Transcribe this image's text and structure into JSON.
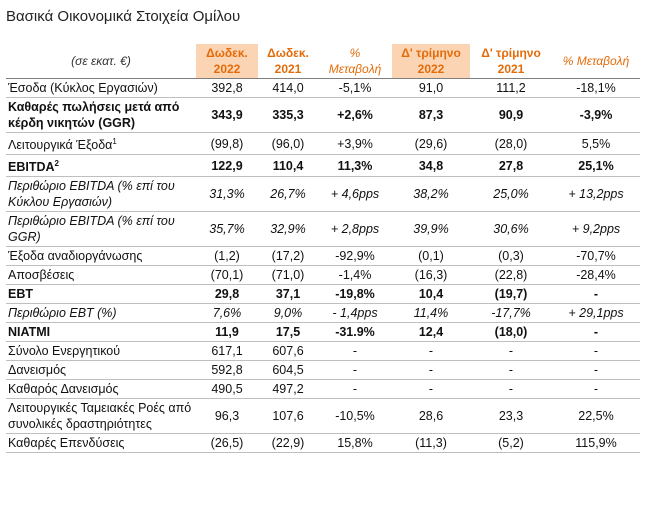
{
  "header": {
    "title": "Βασικά Οικονομικά Στοιχεία Ομίλου"
  },
  "table": {
    "columns": [
      {
        "text": "(σε εκατ. €)",
        "style": "unit"
      },
      {
        "text": "Δωδεκ. 2022",
        "style": "highlight"
      },
      {
        "text": "Δωδεκ. 2021",
        "style": "plain"
      },
      {
        "text": "% Μεταβολή",
        "style": "change"
      },
      {
        "text": "Δ' τρίμηνο 2022",
        "style": "highlight"
      },
      {
        "text": "Δ' τρίμηνο 2021",
        "style": "plain"
      },
      {
        "text": "% Μεταβολή",
        "style": "change"
      }
    ],
    "rows": [
      {
        "label": "Έσοδα (Κύκλος Εργασιών)",
        "style": "normal",
        "cells": [
          "392,8",
          "414,0",
          "-5,1%",
          "91,0",
          "111,2",
          "-18,1%"
        ]
      },
      {
        "label": "Καθαρές πωλήσεις μετά από κέρδη νικητών (GGR)",
        "style": "bold",
        "cells": [
          "343,9",
          "335,3",
          "+2,6%",
          "87,3",
          "90,9",
          "-3,9%"
        ]
      },
      {
        "label": "Λειτουργικά Έξοδα",
        "sup": "1",
        "style": "normal",
        "cells": [
          "(99,8)",
          "(96,0)",
          "+3,9%",
          "(29,6)",
          "(28,0)",
          "5,5%"
        ]
      },
      {
        "label": "EBITDA",
        "sup": "2",
        "style": "bold",
        "cells": [
          "122,9",
          "110,4",
          "11,3%",
          "34,8",
          "27,8",
          "25,1%"
        ]
      },
      {
        "label": "Περιθώριο EBITDA (% επί του Κύκλου Εργασιών)",
        "style": "italic",
        "cells": [
          "31,3%",
          "26,7%",
          "+ 4,6pps",
          "38,2%",
          "25,0%",
          "+ 13,2pps"
        ]
      },
      {
        "label": "Περιθώριο EBITDA (% επί του GGR)",
        "style": "italic",
        "cells": [
          "35,7%",
          "32,9%",
          "+ 2,8pps",
          "39,9%",
          "30,6%",
          "+ 9,2pps"
        ]
      },
      {
        "label": "Έξοδα αναδιοργάνωσης",
        "style": "normal",
        "cells": [
          "(1,2)",
          "(17,2)",
          "-92,9%",
          "(0,1)",
          "(0,3)",
          "-70,7%"
        ]
      },
      {
        "label": "Αποσβέσεις",
        "style": "normal",
        "cells": [
          "(70,1)",
          "(71,0)",
          "-1,4%",
          "(16,3)",
          "(22,8)",
          "-28,4%"
        ]
      },
      {
        "label": "EBT",
        "style": "bold",
        "cells": [
          "29,8",
          "37,1",
          "-19,8%",
          "10,4",
          "(19,7)",
          "-"
        ]
      },
      {
        "label": "Περιθώριο EBT (%)",
        "style": "italic",
        "cells": [
          "7,6%",
          "9,0%",
          "- 1,4pps",
          "11,4%",
          "-17,7%",
          "+ 29,1pps"
        ]
      },
      {
        "label": "NIATMI",
        "style": "bold",
        "cells": [
          "11,9",
          "17,5",
          "-31.9%",
          "12,4",
          "(18,0)",
          "-"
        ]
      },
      {
        "label": "Σύνολο Ενεργητικού",
        "style": "normal",
        "cells": [
          "617,1",
          "607,6",
          "-",
          "-",
          "-",
          "-"
        ]
      },
      {
        "label": "Δανεισμός",
        "style": "normal",
        "cells": [
          "592,8",
          "604,5",
          "-",
          "-",
          "-",
          "-"
        ]
      },
      {
        "label": "Καθαρός Δανεισμός",
        "style": "normal",
        "cells": [
          "490,5",
          "497,2",
          "-",
          "-",
          "-",
          "-"
        ]
      },
      {
        "label": "Λειτουργικές Ταμειακές Ροές από συνολικές δραστηριότητες",
        "style": "normal",
        "cells": [
          "96,3",
          "107,6",
          "-10,5%",
          "28,6",
          "23,3",
          "22,5%"
        ]
      },
      {
        "label": "Καθαρές Επενδύσεις",
        "style": "normal",
        "cells": [
          "(26,5)",
          "(22,9)",
          "15,8%",
          "(11,3)",
          "(5,2)",
          "115,9%"
        ]
      }
    ]
  }
}
